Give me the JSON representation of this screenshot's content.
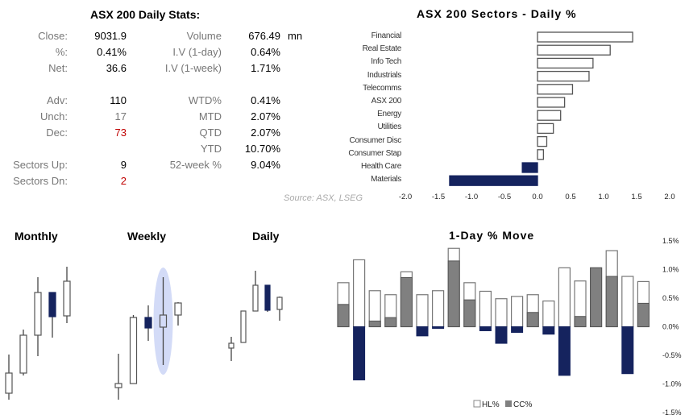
{
  "stats": {
    "title": "ASX 200 Daily Stats:",
    "left": [
      {
        "label": "Close:",
        "value": "9031.9",
        "row": 0
      },
      {
        "label": "%:",
        "value": "0.41%",
        "row": 1
      },
      {
        "label": "Net:",
        "value": "36.6",
        "row": 2
      },
      {
        "label": "Adv:",
        "value": "110",
        "row": 4
      },
      {
        "label": "Unch:",
        "value": "17",
        "row": 5,
        "muted": true
      },
      {
        "label": "Dec:",
        "value": "73",
        "row": 6,
        "red": true
      },
      {
        "label": "Sectors Up:",
        "value": "9",
        "row": 8
      },
      {
        "label": "Sectors Dn:",
        "value": "2",
        "row": 9,
        "red": true
      }
    ],
    "right": [
      {
        "label": "Volume",
        "value": "676.49",
        "row": 0
      },
      {
        "label": "I.V (1-day)",
        "value": "0.64%",
        "row": 1
      },
      {
        "label": "I.V (1-week)",
        "value": "1.71%",
        "row": 2
      },
      {
        "label": "WTD%",
        "value": "0.41%",
        "row": 4
      },
      {
        "label": "MTD",
        "value": "2.07%",
        "row": 5
      },
      {
        "label": "QTD",
        "value": "2.07%",
        "row": 6
      },
      {
        "label": "YTD",
        "value": "10.70%",
        "row": 7
      },
      {
        "label": "52-week %",
        "value": "9.04%",
        "row": 8
      }
    ],
    "volume_unit": "mn"
  },
  "colors": {
    "navy": "#15235e",
    "gray": "#808080",
    "outline": "#555555",
    "highlight": "#d3dbf7",
    "red": "#c00000"
  },
  "source": "Source: ASX, LSEG",
  "candle_titles": {
    "monthly": "Monthly",
    "weekly": "Weekly",
    "daily": "Daily"
  },
  "chart_data": [
    {
      "type": "bar",
      "orientation": "horizontal",
      "title": "ASX 200 Sectors - Daily %",
      "categories": [
        "Financial",
        "Real Estate",
        "Info Tech",
        "Industrials",
        "Telecomms",
        "ASX 200",
        "Energy",
        "Utilities",
        "Consumer Disc",
        "Consumer Stap",
        "Health Care",
        "Materials"
      ],
      "values": [
        1.44,
        1.1,
        0.84,
        0.78,
        0.53,
        0.41,
        0.35,
        0.24,
        0.14,
        0.09,
        -0.23,
        -1.33
      ],
      "xlim": [
        -2.0,
        2.0
      ],
      "xticks": [
        "-2.0",
        "-1.5",
        "-1.0",
        "-0.5",
        "0.0",
        "0.5",
        "1.0",
        "1.5",
        "2.0"
      ]
    },
    {
      "type": "bar",
      "title": "1-Day % Move",
      "series": [
        {
          "name": "HL%",
          "values": [
            0.77,
            1.17,
            0.63,
            0.56,
            0.96,
            0.56,
            0.63,
            1.37,
            0.77,
            0.62,
            0.49,
            0.53,
            0.56,
            0.45,
            1.03,
            0.8,
            1.03,
            1.33,
            0.88,
            0.79
          ]
        },
        {
          "name": "CC%",
          "values": [
            0.39,
            -0.93,
            0.1,
            0.16,
            0.86,
            -0.16,
            -0.03,
            1.15,
            0.47,
            -0.07,
            -0.29,
            -0.1,
            0.25,
            -0.13,
            -0.85,
            0.18,
            1.03,
            0.88,
            -0.82,
            0.41
          ]
        }
      ],
      "ylim": [
        -1.5,
        1.5
      ],
      "yticks": [
        "1.5%",
        "1.0%",
        "0.5%",
        "0.0%",
        "-0.5%",
        "-1.0%",
        "-1.5%"
      ],
      "legend": "bottom"
    },
    {
      "type": "candlestick",
      "title": "Monthly",
      "units": "relative",
      "ohlc": [
        [
          32,
          57,
          24,
          80
        ],
        [
          57,
          104,
          54,
          111
        ],
        [
          104,
          157,
          78,
          176
        ],
        [
          157,
          127,
          101,
          157
        ],
        [
          128,
          171,
          119,
          189
        ]
      ]
    },
    {
      "type": "candlestick",
      "title": "Weekly",
      "units": "relative",
      "highlighted_index": 3,
      "ohlc": [
        [
          39,
          44,
          24,
          81
        ],
        [
          44,
          126,
          44,
          129
        ],
        [
          126,
          113,
          97,
          141
        ],
        [
          114,
          129,
          67,
          176
        ],
        [
          129,
          144,
          116,
          145
        ]
      ]
    },
    {
      "type": "candlestick",
      "title": "Daily",
      "units": "relative",
      "ohlc": [
        [
          88,
          94,
          72,
          102
        ],
        [
          95,
          134,
          95,
          134
        ],
        [
          134,
          166,
          134,
          184
        ],
        [
          166,
          135,
          133,
          166
        ],
        [
          136,
          151,
          122,
          152
        ]
      ]
    }
  ]
}
